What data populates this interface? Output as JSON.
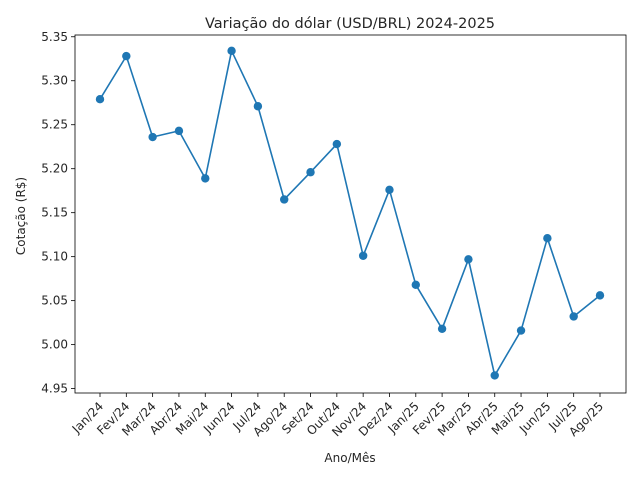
{
  "chart_data": {
    "type": "line",
    "title": "Variação do dólar (USD/BRL) 2024-2025",
    "xlabel": "Ano/Mês",
    "ylabel": "Cotação (R$)",
    "categories": [
      "Jan/24",
      "Fev/24",
      "Mar/24",
      "Abr/24",
      "Mai/24",
      "Jun/24",
      "Jul/24",
      "Ago/24",
      "Set/24",
      "Out/24",
      "Nov/24",
      "Dez/24",
      "Jan/25",
      "Fev/25",
      "Mar/25",
      "Abr/25",
      "Mai/25",
      "Jun/25",
      "Jul/25",
      "Ago/25"
    ],
    "values": [
      5.279,
      5.328,
      5.236,
      5.243,
      5.189,
      5.334,
      5.271,
      5.165,
      5.196,
      5.228,
      5.101,
      5.176,
      5.068,
      5.018,
      5.097,
      4.965,
      5.016,
      5.121,
      5.032,
      5.056
    ],
    "ylim": [
      4.945,
      5.352
    ],
    "yticks": [
      "4.95",
      "5.00",
      "5.05",
      "5.10",
      "5.15",
      "5.20",
      "5.25",
      "5.30",
      "5.35"
    ],
    "line_color": "#1f77b4",
    "grid": false,
    "markers": true
  }
}
